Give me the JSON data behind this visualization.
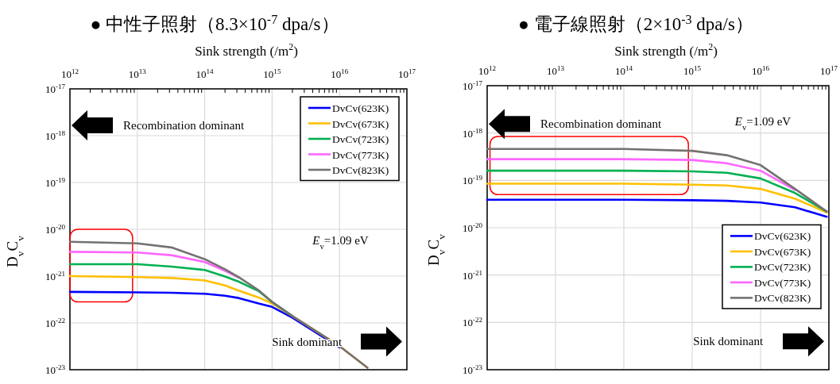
{
  "chart_data": [
    {
      "type": "line",
      "title": "● 中性子照射（8.3×10$^{-7}$ dpa/s）",
      "xlabel": "Sink strength (/m$^{2}$)",
      "ylabel": "D$_{v}$C$_{v}$",
      "log": "xy",
      "grid": true,
      "legend": "top right",
      "line_style": "solid",
      "xlim": [
        1000000000000.0,
        1e+17
      ],
      "xticks": [
        {
          "value": 1000000000000.0,
          "label": "10$^{12}$"
        },
        {
          "value": 10000000000000.0,
          "label": "10$^{13}$"
        },
        {
          "value": 100000000000000.0,
          "label": "10$^{14}$"
        },
        {
          "value": 1000000000000000.0,
          "label": "10$^{15}$"
        },
        {
          "value": 1e+16,
          "label": "10$^{16}$"
        },
        {
          "value": 1e+17,
          "label": "10$^{17}$"
        }
      ],
      "ylim": [
        1e-23,
        1e-17
      ],
      "yticks": [
        {
          "value": 1e-17,
          "label": "10$^{-17}$"
        },
        {
          "value": 1e-18,
          "label": "10$^{-18}$"
        },
        {
          "value": 1e-19,
          "label": "10$^{-19}$"
        },
        {
          "value": 1e-20,
          "label": "10$^{-20}$"
        },
        {
          "value": 1e-21,
          "label": "10$^{-21}$"
        },
        {
          "value": 1e-22,
          "label": "10$^{-22}$"
        },
        {
          "value": 1e-23,
          "label": "10$^{-23}$"
        }
      ],
      "x": [
        1000000000000.0,
        10000000000000.0,
        32000000000000.0,
        100000000000000.0,
        200000000000000.0,
        320000000000000.0,
        630000000000000.0,
        1000000000000000.0,
        2000000000000000.0,
        1e+16,
        2.6e+16
      ],
      "series": [
        {
          "name": "DvCv(623K)",
          "color": "#0000ff",
          "values": [
            4.6e-22,
            4.5e-22,
            4.4e-22,
            4.2e-22,
            3.8e-22,
            3.4e-22,
            2.6e-22,
            2.2e-22,
            1.3e-22,
            3e-23,
            null
          ]
        },
        {
          "name": "DvCv(673K)",
          "color": "#ffc000",
          "values": [
            1e-21,
            9.5e-22,
            9.1e-22,
            8.1e-22,
            6.3e-22,
            4.9e-22,
            3.5e-22,
            2.6e-22,
            1.4e-22,
            3.2e-23,
            1.1e-23
          ]
        },
        {
          "name": "DvCv(723K)",
          "color": "#00b050",
          "values": [
            1.8e-21,
            1.8e-21,
            1.6e-21,
            1.35e-21,
            9.8e-22,
            7.6e-22,
            4.8e-22,
            2.8e-22,
            1.4e-22,
            null,
            null
          ]
        },
        {
          "name": "DvCv(773K)",
          "color": "#ff66ff",
          "values": [
            3.3e-21,
            3.2e-21,
            2.8e-21,
            2e-21,
            1.3e-21,
            9.3e-22,
            null,
            null,
            null,
            null,
            null
          ]
        },
        {
          "name": "DvCv(823K)",
          "color": "#767171",
          "values": [
            5.4e-21,
            5e-21,
            4.1e-21,
            2.3e-21,
            1.4e-21,
            9.5e-22,
            5e-22,
            2.8e-22,
            1.4e-22,
            3.2e-23,
            1.1e-23
          ]
        }
      ],
      "annotations": [
        "Recombination dominant",
        "Sink dominant",
        "*E*$_{v}$=1.09  eV"
      ]
    },
    {
      "type": "line",
      "title": "● 電子線照射（2×10$^{-3}$ dpa/s）",
      "xlabel": "Sink strength (/m$^{2}$)",
      "ylabel": "D$_{v}$C$_{v}$",
      "log": "xy",
      "grid": true,
      "legend": "right",
      "line_style": "solid",
      "xlim": [
        1000000000000.0,
        1e+17
      ],
      "xticks": [
        {
          "value": 1000000000000.0,
          "label": "10$^{12}$"
        },
        {
          "value": 10000000000000.0,
          "label": "10$^{13}$"
        },
        {
          "value": 100000000000000.0,
          "label": "10$^{14}$"
        },
        {
          "value": 1000000000000000.0,
          "label": "10$^{15}$"
        },
        {
          "value": 1e+16,
          "label": "10$^{16}$"
        },
        {
          "value": 1e+17,
          "label": "10$^{17}$"
        }
      ],
      "ylim": [
        1e-23,
        1e-17
      ],
      "yticks": [
        {
          "value": 1e-17,
          "label": "10$^{-17}$"
        },
        {
          "value": 1e-18,
          "label": "10$^{-18}$"
        },
        {
          "value": 1e-19,
          "label": "10$^{-19}$"
        },
        {
          "value": 1e-20,
          "label": "10$^{-20}$"
        },
        {
          "value": 1e-21,
          "label": "10$^{-21}$"
        },
        {
          "value": 1e-22,
          "label": "10$^{-22}$"
        },
        {
          "value": 1e-23,
          "label": "10$^{-23}$"
        }
      ],
      "x": [
        1000000000000.0,
        100000000000000.0,
        1000000000000000.0,
        3200000000000000.0,
        1e+16,
        3.2e+16,
        9.3e+16
      ],
      "series": [
        {
          "name": "DvCv(623K)",
          "color": "#0000ff",
          "values": [
            3.9e-20,
            3.9e-20,
            3.8e-20,
            3.7e-20,
            3.4e-20,
            2.7e-20,
            1.7e-20
          ]
        },
        {
          "name": "DvCv(673K)",
          "color": "#ffc000",
          "values": [
            8.5e-20,
            8.5e-20,
            8.1e-20,
            7.8e-20,
            6.6e-20,
            4.1e-20,
            2.1e-20
          ]
        },
        {
          "name": "DvCv(723K)",
          "color": "#00b050",
          "values": [
            1.6e-19,
            1.6e-19,
            1.55e-19,
            1.45e-19,
            1.1e-19,
            5.4e-20,
            2.2e-20
          ]
        },
        {
          "name": "DvCv(773K)",
          "color": "#ff66ff",
          "values": [
            2.8e-19,
            2.8e-19,
            2.7e-19,
            2.3e-19,
            1.6e-19,
            6.3e-20,
            null
          ]
        },
        {
          "name": "DvCv(823K)",
          "color": "#767171",
          "values": [
            4.6e-19,
            4.6e-19,
            4.2e-19,
            3.4e-19,
            2.1e-19,
            6.6e-20,
            2.2e-20
          ]
        }
      ],
      "annotations": [
        "Recombination dominant",
        "Sink dominant",
        "*E*$_{v}$=1.09  eV"
      ]
    }
  ]
}
